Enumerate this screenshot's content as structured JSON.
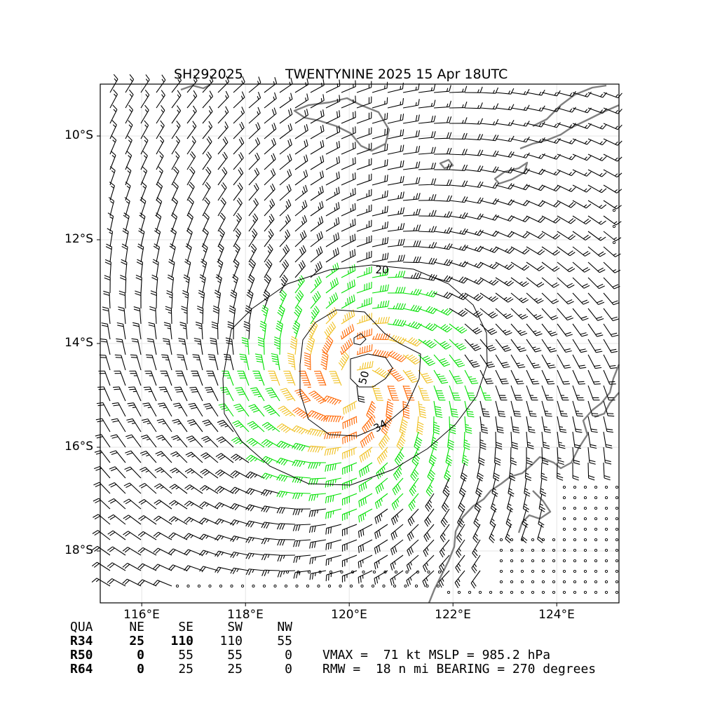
{
  "header": {
    "storm_id": "SH292025",
    "title": "TWENTYNINE 2025 15 Apr 18UTC"
  },
  "axes": {
    "x_ticks": [
      "116°E",
      "118°E",
      "120°E",
      "122°E",
      "124°E"
    ],
    "y_ticks": [
      "10°S",
      "12°S",
      "14°S",
      "16°S",
      "18°S"
    ]
  },
  "contour_labels": {
    "c20": "20",
    "c34": "34",
    "c50": "50"
  },
  "colors": {
    "wind_below_34": "#000000",
    "wind_34_to_50": "#00e000",
    "wind_50_to_64": "#f0c020",
    "wind_above_64": "#ff6600",
    "coastline": "#808080",
    "contour": "#000000"
  },
  "storm": {
    "center_lon": 120.1,
    "center_lat": -14.8,
    "wind_barbs": "field"
  },
  "radii_table": {
    "header": [
      "QUA",
      "NE",
      "SE",
      "SW",
      "NW"
    ],
    "rows": [
      {
        "label": "R34",
        "NE": "25",
        "SE": "110",
        "SW": "110",
        "NW": "55"
      },
      {
        "label": "R50",
        "NE": "0",
        "SE": "55",
        "SW": "55",
        "NW": "0"
      },
      {
        "label": "R64",
        "NE": "0",
        "SE": "25",
        "SW": "25",
        "NW": "0"
      }
    ]
  },
  "stats": {
    "line1": "VMAX =  71 kt MSLP = 985.2 hPa",
    "line2": "RMW =  18 n mi BEARING = 270 degrees"
  }
}
